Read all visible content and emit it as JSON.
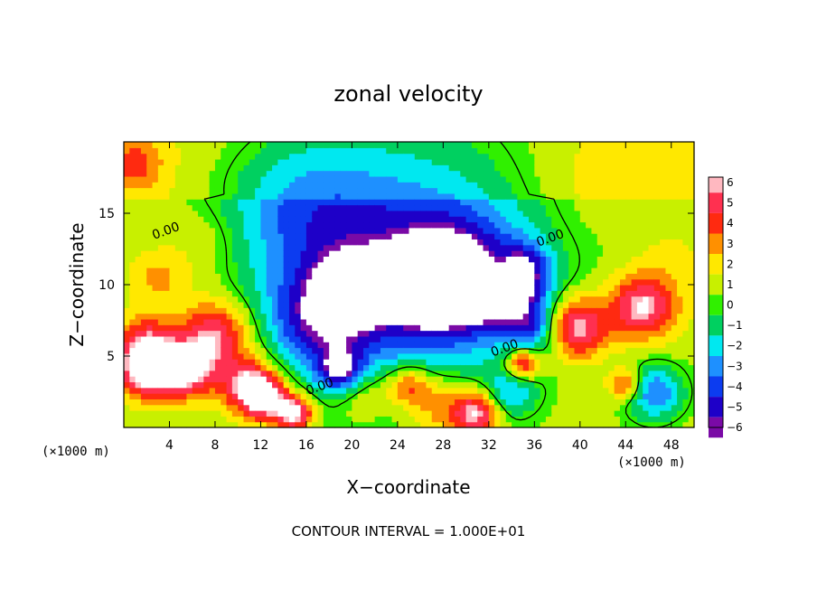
{
  "chart_data": {
    "type": "heatmap",
    "title": "zonal velocity",
    "xlabel": "X−coordinate",
    "ylabel": "Z−coordinate",
    "x_unit": "(×1000 m)",
    "x_unit_right": "(×1000 m)",
    "xlim": [
      0,
      50
    ],
    "ylim": [
      0,
      20
    ],
    "x_ticks": [
      4,
      8,
      12,
      16,
      20,
      24,
      28,
      32,
      36,
      40,
      44,
      48
    ],
    "y_ticks": [
      5,
      10,
      15
    ],
    "colorbar": {
      "ticks": [
        "6",
        "5",
        "4",
        "3",
        "2",
        "1",
        "0",
        "−1",
        "−2",
        "−3",
        "−4",
        "−5",
        "−6"
      ],
      "min": -6,
      "max": 6,
      "colors": [
        "#7a0aa6",
        "#1e00c8",
        "#0c3cf0",
        "#1e90ff",
        "#00e8f0",
        "#00d060",
        "#30f000",
        "#c8f000",
        "#ffe800",
        "#ff9000",
        "#ff2a10",
        "#ff3050",
        "#ffb8c0"
      ]
    },
    "contour_labels": [
      {
        "text": "0.00",
        "x": 3.8,
        "y": 13.5
      },
      {
        "text": "0.00",
        "x": 37.5,
        "y": 13.0
      },
      {
        "text": "0.00",
        "x": 17.3,
        "y": 2.6
      },
      {
        "text": "0.00",
        "x": 33.5,
        "y": 5.3
      }
    ],
    "footer": "CONTOUR INTERVAL = 1.000E+01",
    "blobs": [
      {
        "x": 25,
        "y": 14.5,
        "r": 13,
        "v": -3.3
      },
      {
        "x": 15,
        "y": 15.5,
        "r": 7,
        "v": -2.6
      },
      {
        "x": 24,
        "y": 9,
        "r": 9,
        "v": -3.2
      },
      {
        "x": 29,
        "y": 10.5,
        "r": 5,
        "v": -4.8
      },
      {
        "x": 33,
        "y": 10,
        "r": 3.5,
        "v": -5.6
      },
      {
        "x": 17,
        "y": 7.5,
        "r": 4.5,
        "v": -4.2
      },
      {
        "x": 20,
        "y": 10,
        "r": 3,
        "v": -3.5
      },
      {
        "x": 21.5,
        "y": 9.5,
        "r": 2,
        "v": -5.0
      },
      {
        "x": 27,
        "y": 10,
        "r": 3,
        "v": -5.0
      },
      {
        "x": 8,
        "y": 6.5,
        "r": 3.2,
        "v": 5.0
      },
      {
        "x": 2,
        "y": 6,
        "r": 2.5,
        "v": 4.0
      },
      {
        "x": 2,
        "y": 4,
        "r": 2.5,
        "v": 6.0
      },
      {
        "x": 5.5,
        "y": 4,
        "r": 2.5,
        "v": 5.5
      },
      {
        "x": 11,
        "y": 3,
        "r": 2.5,
        "v": 5.5
      },
      {
        "x": 12.5,
        "y": 2,
        "r": 2,
        "v": 5.0
      },
      {
        "x": 19,
        "y": 4,
        "r": 2,
        "v": -5.0
      },
      {
        "x": 25,
        "y": 3,
        "r": 2,
        "v": 4.0
      },
      {
        "x": 34,
        "y": 2.5,
        "r": 2.2,
        "v": -3.0
      },
      {
        "x": 33,
        "y": 11,
        "r": 2.5,
        "v": 6.0
      },
      {
        "x": 34.5,
        "y": 11,
        "r": 2.5,
        "v": -5.0
      },
      {
        "x": 39.5,
        "y": 7,
        "r": 2.8,
        "v": 6.0
      },
      {
        "x": 36,
        "y": 7,
        "r": 2.5,
        "v": -4.0
      },
      {
        "x": 45.5,
        "y": 8.5,
        "r": 3,
        "v": 5.5
      },
      {
        "x": 46.5,
        "y": 2.5,
        "r": 2.6,
        "v": -4.5
      },
      {
        "x": 44,
        "y": 3,
        "r": 1.5,
        "v": 4.0
      },
      {
        "x": 35,
        "y": 4.5,
        "r": 1.5,
        "v": 5.5
      },
      {
        "x": 21,
        "y": 2.5,
        "r": 2.5,
        "v": 2.0
      },
      {
        "x": 28,
        "y": 1.5,
        "r": 3,
        "v": 3.0
      },
      {
        "x": 1,
        "y": 18.5,
        "r": 2.5,
        "v": 2.5
      },
      {
        "x": 41,
        "y": 17,
        "r": 5,
        "v": 0.8
      },
      {
        "x": 7,
        "y": 13,
        "r": 3.5,
        "v": 1.2
      },
      {
        "x": 3,
        "y": 10.5,
        "r": 2.5,
        "v": 2.0
      },
      {
        "x": 48,
        "y": 12,
        "r": 3,
        "v": 0.9
      },
      {
        "x": 15,
        "y": 1,
        "r": 1.6,
        "v": 6.0
      },
      {
        "x": 31,
        "y": 1,
        "r": 2,
        "v": 5.0
      }
    ]
  }
}
